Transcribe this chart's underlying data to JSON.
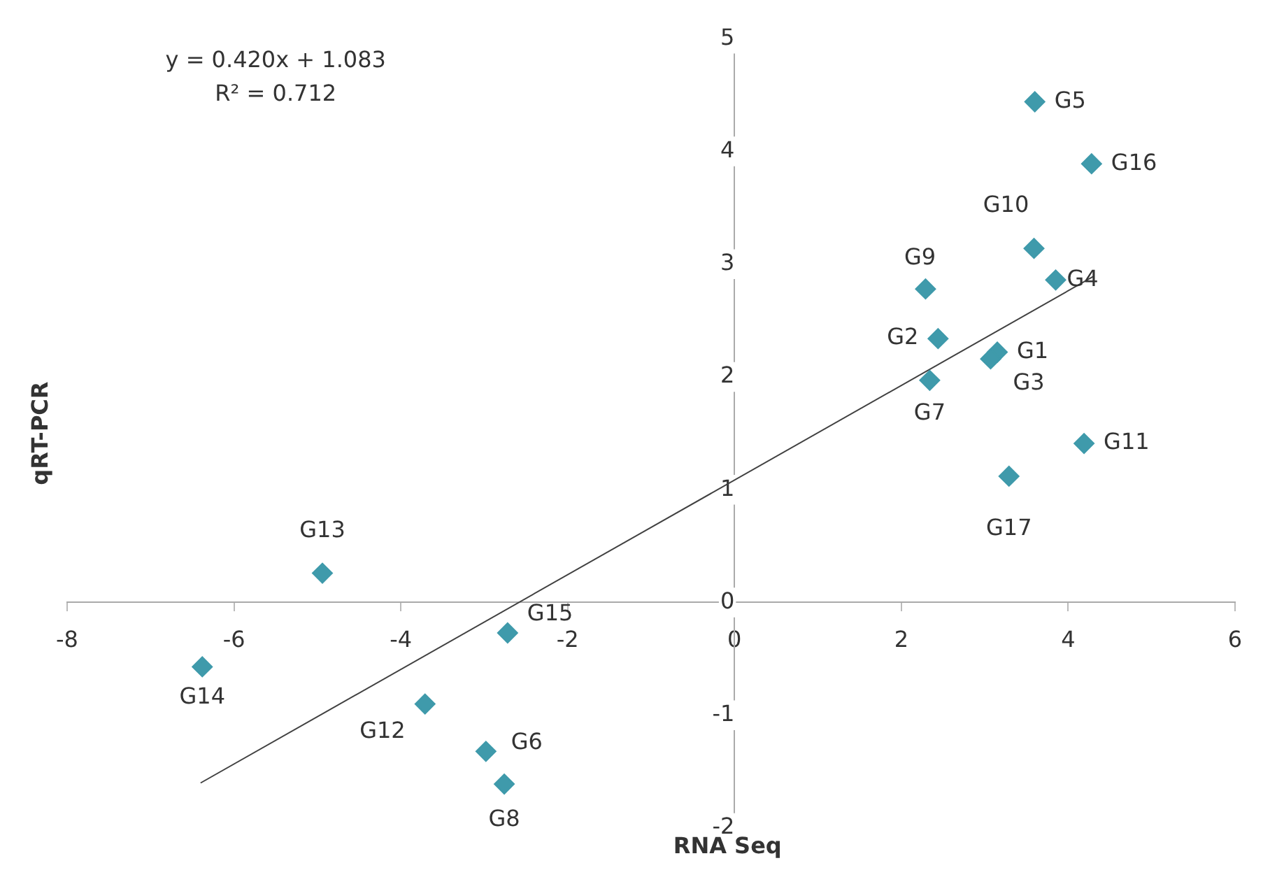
{
  "chart_data": {
    "type": "scatter",
    "xlabel": "RNA Seq",
    "ylabel": "qRT-PCR",
    "xlim": [
      -8,
      6
    ],
    "ylim": [
      -2,
      5
    ],
    "xticks": [
      -8,
      -6,
      -4,
      -2,
      0,
      2,
      4,
      6
    ],
    "yticks": [
      -2,
      -1,
      0,
      1,
      2,
      3,
      4,
      5
    ],
    "grid": false,
    "legend": false,
    "marker": "diamond",
    "series": [
      {
        "color": "#3f9aab",
        "x": [
          3.6,
          4.28,
          3.59,
          3.85,
          2.29,
          2.44,
          3.15,
          3.07,
          2.34,
          4.19,
          3.29,
          -4.94,
          -2.72,
          -6.38,
          -3.71,
          -2.98,
          -2.76
        ],
        "values": [
          4.44,
          3.89,
          3.14,
          2.86,
          2.78,
          2.34,
          2.22,
          2.16,
          1.97,
          1.41,
          1.12,
          0.26,
          -0.27,
          -0.57,
          -0.9,
          -1.32,
          -1.61
        ]
      },
      {
        "type": "line",
        "color": "#404040",
        "x": [
          -6.4,
          4.3
        ],
        "values": [
          -1.6,
          2.89
        ],
        "marker": "none"
      }
    ],
    "annotations": [
      "y = 0.420x + 1.083",
      "R² = 0.712",
      {
        "text": "G5",
        "x": 3.6,
        "y": 4.44
      },
      {
        "text": "G16",
        "x": 4.28,
        "y": 3.89
      },
      {
        "text": "G10",
        "x": 3.59,
        "y": 3.14
      },
      {
        "text": "G4",
        "x": 3.85,
        "y": 2.86
      },
      {
        "text": "G9",
        "x": 2.29,
        "y": 2.78
      },
      {
        "text": "G2",
        "x": 2.44,
        "y": 2.34
      },
      {
        "text": "G1",
        "x": 3.15,
        "y": 2.22
      },
      {
        "text": "G3",
        "x": 3.07,
        "y": 2.16
      },
      {
        "text": "G7",
        "x": 2.34,
        "y": 1.97
      },
      {
        "text": "G11",
        "x": 4.19,
        "y": 1.41
      },
      {
        "text": "G17",
        "x": 3.29,
        "y": 1.12
      },
      {
        "text": "G13",
        "x": -4.94,
        "y": 0.26
      },
      {
        "text": "G15",
        "x": -2.72,
        "y": -0.27
      },
      {
        "text": "G14",
        "x": -6.38,
        "y": -0.57
      },
      {
        "text": "G12",
        "x": -3.71,
        "y": -0.9
      },
      {
        "text": "G6",
        "x": -2.98,
        "y": -1.32
      },
      {
        "text": "G8",
        "x": -2.76,
        "y": -1.61
      }
    ]
  }
}
